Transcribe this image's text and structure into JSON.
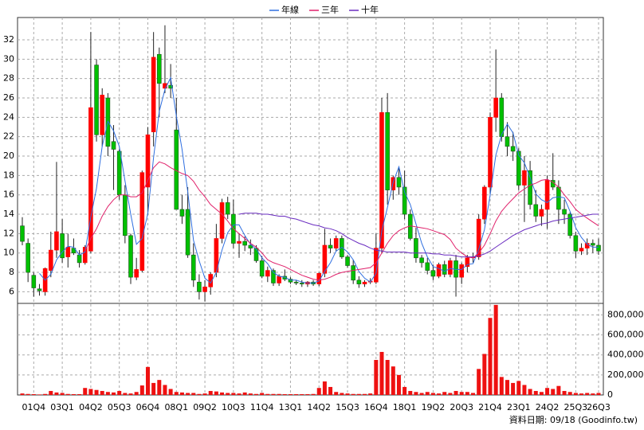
{
  "chart_data": [
    {
      "type": "candlestick",
      "categories": [
        null,
        null,
        "01Q4",
        null,
        null,
        null,
        null,
        "03Q1",
        null,
        null,
        null,
        null,
        "04Q2",
        null,
        null,
        null,
        null,
        "05Q3",
        null,
        null,
        null,
        null,
        "06Q4",
        null,
        null,
        null,
        null,
        "08Q1",
        null,
        null,
        null,
        null,
        "09Q2",
        null,
        null,
        null,
        null,
        "10Q3",
        null,
        null,
        null,
        null,
        "11Q4",
        null,
        null,
        null,
        null,
        "13Q1",
        null,
        null,
        null,
        null,
        "14Q2",
        null,
        null,
        null,
        null,
        "15Q3",
        null,
        null,
        null,
        null,
        "16Q4",
        null,
        null,
        null,
        null,
        "18Q1",
        null,
        null,
        null,
        null,
        "19Q2",
        null,
        null,
        null,
        null,
        "20Q3",
        null,
        null,
        null,
        null,
        "21Q4",
        null,
        null,
        null,
        null,
        "23Q1",
        null,
        null,
        null,
        null,
        "24Q2",
        null,
        null,
        null,
        null,
        "25Q3",
        null,
        null,
        null,
        "26Q3"
      ],
      "candles": [
        [
          12.8,
          13.7,
          10.8,
          11.2
        ],
        [
          11,
          11.5,
          7,
          8
        ],
        [
          7.7,
          8,
          5.5,
          6.4
        ],
        [
          6.3,
          6.8,
          5.6,
          6.1
        ],
        [
          6,
          8.5,
          5.6,
          8.4
        ],
        [
          8.2,
          12.2,
          7.5,
          10.3
        ],
        [
          10.3,
          19.4,
          9.5,
          12.2
        ],
        [
          12,
          13.5,
          9,
          9.5
        ],
        [
          9.6,
          12,
          8.5,
          10.6
        ],
        [
          10.5,
          11.5,
          9.8,
          10
        ],
        [
          9.8,
          10.3,
          8.5,
          9
        ],
        [
          9,
          10.8,
          8.8,
          10.6
        ],
        [
          10.2,
          32.8,
          10,
          25
        ],
        [
          29.4,
          30,
          21.5,
          22.2
        ],
        [
          22.2,
          27,
          21,
          26.3
        ],
        [
          26,
          26.5,
          20,
          21
        ],
        [
          21.5,
          23.2,
          16.5,
          20.7
        ],
        [
          20.5,
          20.7,
          15.5,
          16
        ],
        [
          16,
          17,
          11,
          11.8
        ],
        [
          11.8,
          12,
          6.8,
          7.5
        ],
        [
          7.5,
          9.5,
          7.2,
          8.3
        ],
        [
          8.2,
          18.5,
          8,
          18.3
        ],
        [
          16.8,
          23,
          14,
          22.2
        ],
        [
          22.5,
          32.8,
          21,
          30.2
        ],
        [
          30.5,
          31.2,
          24,
          27.5
        ],
        [
          27,
          33.5,
          26.5,
          27.5
        ],
        [
          27.3,
          29.5,
          26,
          27
        ],
        [
          22.7,
          26,
          14.5,
          14.5
        ],
        [
          14.5,
          16,
          13,
          13.8
        ],
        [
          14.5,
          16.8,
          9.5,
          9.8
        ],
        [
          9.8,
          11,
          6.5,
          7.2
        ],
        [
          7,
          7.8,
          5.2,
          6
        ],
        [
          6,
          7.2,
          5,
          6.5
        ],
        [
          6.5,
          8,
          5.7,
          7.8
        ],
        [
          8,
          13,
          7.5,
          11.5
        ],
        [
          11.5,
          15.6,
          11,
          15.2
        ],
        [
          15.2,
          15.8,
          13.5,
          14
        ],
        [
          14,
          15.5,
          10.5,
          11
        ],
        [
          11,
          12,
          9.5,
          11.2
        ],
        [
          11.2,
          11.7,
          10.2,
          10.8
        ],
        [
          10.8,
          11.4,
          9.8,
          10.5
        ],
        [
          10.5,
          10.8,
          9,
          9.2
        ],
        [
          9.2,
          9.7,
          7.4,
          7.6
        ],
        [
          7.6,
          8.6,
          7,
          8.2
        ],
        [
          8.2,
          8.4,
          6.6,
          6.9
        ],
        [
          6.9,
          7.8,
          6.6,
          7.6
        ],
        [
          7.6,
          8.3,
          7.1,
          7.3
        ],
        [
          7.3,
          7.5,
          6.8,
          7
        ],
        [
          7,
          7.2,
          6.7,
          6.9
        ],
        [
          6.9,
          7.2,
          6.5,
          6.8
        ],
        [
          6.8,
          7.1,
          6.5,
          7
        ],
        [
          7,
          7.2,
          6.6,
          6.8
        ],
        [
          6.8,
          8,
          6.6,
          7.9
        ],
        [
          7.9,
          12.5,
          7.5,
          10.8
        ],
        [
          10.8,
          11.5,
          10,
          10.5
        ],
        [
          10.5,
          11.8,
          10.2,
          11.5
        ],
        [
          11.5,
          11.8,
          9.4,
          9.6
        ],
        [
          9.6,
          9.8,
          8.5,
          8.7
        ],
        [
          8.7,
          9.3,
          6.8,
          7.2
        ],
        [
          7.2,
          7.6,
          6.4,
          6.8
        ],
        [
          6.8,
          7.2,
          6.5,
          7
        ],
        [
          7,
          7.4,
          6.8,
          7.1
        ],
        [
          7,
          12,
          6.8,
          10.5
        ],
        [
          10.5,
          26,
          10,
          24.5
        ],
        [
          24.5,
          26.5,
          15,
          16.5
        ],
        [
          16.5,
          18,
          15.5,
          17.8
        ],
        [
          17.8,
          18.9,
          16,
          16.8
        ],
        [
          16.8,
          18.5,
          13.5,
          14
        ],
        [
          14,
          14.5,
          11.3,
          11.5
        ],
        [
          11.5,
          12.6,
          9,
          9.5
        ],
        [
          9.5,
          9.8,
          8.5,
          9
        ],
        [
          9,
          9.5,
          7.8,
          8.2
        ],
        [
          8.2,
          8.8,
          7.2,
          7.6
        ],
        [
          7.6,
          9,
          7.4,
          8.8
        ],
        [
          8.8,
          9.2,
          7.5,
          7.8
        ],
        [
          7.8,
          9.5,
          7.5,
          9.2
        ],
        [
          9.2,
          9.8,
          5.5,
          7.5
        ],
        [
          7.5,
          9,
          6.8,
          8.8
        ],
        [
          8.6,
          9.8,
          8,
          9.5
        ],
        [
          9.5,
          10,
          9,
          9.6
        ],
        [
          9.6,
          14,
          9.3,
          13.5
        ],
        [
          13.5,
          17,
          13,
          16.8
        ],
        [
          16.8,
          24.5,
          16,
          24
        ],
        [
          24,
          31,
          22.5,
          26
        ],
        [
          26,
          26.5,
          21.5,
          22
        ],
        [
          22,
          23.5,
          20,
          21
        ],
        [
          21,
          22.5,
          19.5,
          20.5
        ],
        [
          20.5,
          20.8,
          16.5,
          17
        ],
        [
          17,
          20,
          13.2,
          18.5
        ],
        [
          18.5,
          19.5,
          14.5,
          15
        ],
        [
          15,
          16.5,
          13.2,
          13.8
        ],
        [
          13.8,
          15,
          12.8,
          14.5
        ],
        [
          14.5,
          18,
          12.5,
          17.5
        ],
        [
          17.5,
          20.3,
          16.5,
          16.8
        ],
        [
          16.8,
          17.5,
          13,
          14.5
        ],
        [
          14.5,
          15.5,
          13,
          14
        ],
        [
          14,
          14.2,
          11.5,
          11.8
        ],
        [
          11.8,
          12.2,
          9.5,
          10.2
        ],
        [
          10.2,
          11,
          9.8,
          10.5
        ],
        [
          10.5,
          11.5,
          9.8,
          11
        ],
        [
          11,
          11.4,
          10,
          10.8
        ],
        [
          10.8,
          11.5,
          9.8,
          10.2
        ]
      ],
      "up_color": "#ff0000",
      "down_color": "#00c000",
      "series": [
        {
          "name": "年線",
          "color": "#2f6fe0",
          "values": [
            null,
            null,
            null,
            7.9,
            7.2,
            7.8,
            9.3,
            10.1,
            10.7,
            10.6,
            9.8,
            10.1,
            13.7,
            16.7,
            21,
            23.6,
            22.6,
            21,
            17.4,
            14,
            10.9,
            11.5,
            14.1,
            19.8,
            24.6,
            26.9,
            28.1,
            24.1,
            20.7,
            16.3,
            11.3,
            9.2,
            7.4,
            6.9,
            8,
            10.3,
            12.1,
            12.9,
            12.9,
            11.8,
            10.9,
            10.4,
            9.5,
            8.9,
            8,
            7.6,
            7.5,
            7.2,
            7.2,
            7,
            6.9,
            6.9,
            7.1,
            8.1,
            9,
            10.2,
            10.6,
            10.1,
            9.3,
            8.1,
            7.4,
            7,
            7.9,
            12.3,
            14.7,
            17.3,
            18.9,
            16.3,
            15,
            13,
            11,
            9.6,
            8.6,
            8.4,
            8.1,
            8.4,
            8.3,
            8.3,
            8.8,
            8.9,
            10.4,
            12.4,
            16,
            20.1,
            22.2,
            23.3,
            22.4,
            20.1,
            19.3,
            17.8,
            16.1,
            15.5,
            15.2,
            15.7,
            15.8,
            15.7,
            14.3,
            12.6,
            11.6,
            10.9,
            10.6,
            10.6
          ]
        },
        {
          "name": "三年",
          "color": "#e0206a",
          "values": [
            null,
            null,
            null,
            null,
            null,
            null,
            null,
            null,
            null,
            null,
            null,
            10.2,
            11.5,
            12.5,
            13.8,
            14.8,
            15.5,
            16,
            16,
            15.8,
            15.8,
            16.2,
            17.5,
            18.8,
            19.4,
            19.2,
            18.8,
            18.5,
            18.2,
            18,
            17.4,
            16.5,
            15.8,
            15,
            14.5,
            14,
            13.3,
            12.5,
            12,
            11.5,
            11,
            10.6,
            10,
            9.3,
            9,
            8.8,
            8.6,
            8.3,
            8,
            7.7,
            7.5,
            7.3,
            7.2,
            7.3,
            7.5,
            7.8,
            8,
            8.1,
            8.2,
            8.3,
            8.4,
            8.5,
            9,
            10,
            11,
            11.8,
            12.3,
            12.6,
            12.8,
            12.7,
            12.6,
            12.5,
            12.3,
            12.1,
            11.9,
            11.4,
            10.5,
            10,
            9.6,
            9.5,
            10,
            10.8,
            12,
            13.3,
            14.3,
            15,
            15.6,
            16.2,
            16.6,
            17,
            17.2,
            17.5,
            17.6,
            17.3,
            16.8,
            16,
            15.3,
            14.5,
            14,
            13.6,
            13.2,
            12.8
          ]
        },
        {
          "name": "十年",
          "color": "#6a2cc0",
          "values": [
            null,
            null,
            null,
            null,
            null,
            null,
            null,
            null,
            null,
            null,
            null,
            null,
            null,
            null,
            null,
            null,
            null,
            null,
            null,
            null,
            null,
            null,
            null,
            null,
            null,
            null,
            null,
            null,
            null,
            null,
            null,
            null,
            null,
            null,
            null,
            null,
            null,
            null,
            14,
            14.1,
            14.1,
            14.1,
            14,
            14,
            13.9,
            13.8,
            13.8,
            13.6,
            13.5,
            13.3,
            13.1,
            12.9,
            12.8,
            12.6,
            12.5,
            12.3,
            12,
            11.6,
            11.3,
            11,
            10.8,
            10.5,
            10.3,
            10.2,
            10.1,
            10.1,
            10.1,
            10.1,
            10,
            10,
            10,
            10,
            9.9,
            9.9,
            9.8,
            9.8,
            9.7,
            9.6,
            9.6,
            9.6,
            9.7,
            9.9,
            10.2,
            10.6,
            11,
            11.4,
            11.8,
            12.1,
            12.4,
            12.6,
            12.8,
            13,
            13.1,
            13.3,
            13.4,
            13.5,
            13.6,
            13.7,
            13.8,
            13.9,
            14,
            14
          ]
        }
      ],
      "ylim": [
        4.8,
        34.3
      ],
      "yticks": [
        6,
        8,
        10,
        12,
        14,
        16,
        18,
        20,
        22,
        24,
        26,
        28,
        30,
        32
      ],
      "grid": true
    },
    {
      "type": "bar",
      "color": "#ee1111",
      "values": [
        15000,
        10000,
        8000,
        5000,
        10000,
        40000,
        25000,
        20000,
        10000,
        8000,
        8000,
        70000,
        60000,
        50000,
        40000,
        30000,
        25000,
        40000,
        20000,
        15000,
        30000,
        95000,
        280000,
        120000,
        150000,
        100000,
        60000,
        30000,
        25000,
        20000,
        20000,
        10000,
        15000,
        40000,
        35000,
        25000,
        20000,
        20000,
        15000,
        25000,
        15000,
        10000,
        20000,
        10000,
        10000,
        10000,
        8000,
        8000,
        8000,
        8000,
        8000,
        10000,
        70000,
        135000,
        80000,
        30000,
        20000,
        15000,
        10000,
        10000,
        10000,
        15000,
        350000,
        430000,
        350000,
        285000,
        200000,
        80000,
        40000,
        30000,
        20000,
        30000,
        20000,
        15000,
        30000,
        20000,
        40000,
        30000,
        30000,
        20000,
        260000,
        410000,
        770000,
        900000,
        180000,
        150000,
        120000,
        140000,
        100000,
        60000,
        40000,
        30000,
        70000,
        60000,
        90000,
        40000,
        30000,
        20000,
        15000,
        20000,
        15000,
        20000
      ],
      "ylim": [
        0,
        915000
      ],
      "yticks": [
        0,
        {
          "value": 200000,
          "label": "200,000"
        },
        {
          "value": 400000,
          "label": "400,000"
        },
        {
          "value": 600000,
          "label": "600,000"
        },
        {
          "value": 800000,
          "label": "800,000"
        }
      ],
      "grid": true
    }
  ],
  "footer": "資料日期: 09/18 (Goodinfo.tw)"
}
